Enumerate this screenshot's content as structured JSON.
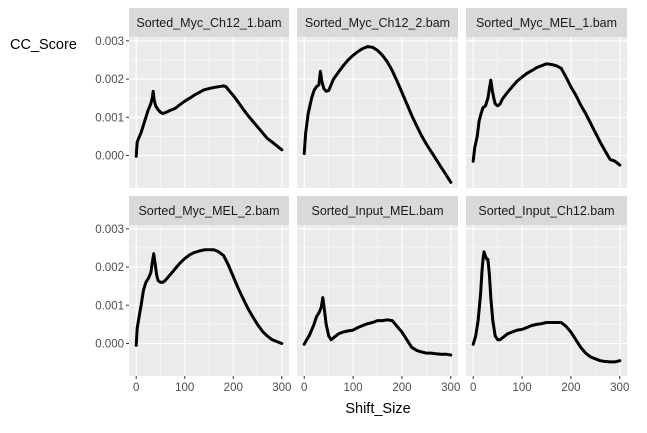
{
  "chart_data": {
    "type": "line",
    "xlabel": "Shift_Size",
    "ylabel": "CC_Score",
    "xlim": [
      0,
      300
    ],
    "ylim": [
      -0.00085,
      0.0031
    ],
    "x_ticks": [
      0,
      100,
      200,
      300
    ],
    "x_tick_labels": [
      "0",
      "100",
      "200",
      "300"
    ],
    "y_ticks": [
      0,
      0.001,
      0.002,
      0.003
    ],
    "y_tick_labels": [
      "0.000",
      "0.001",
      "0.002",
      "0.003"
    ],
    "grid": true,
    "facet_layout": {
      "rows": 2,
      "cols": 3
    },
    "panels": [
      {
        "title": "Sorted_Myc_Ch12_1.bam",
        "points": [
          [
            0,
            -2e-05
          ],
          [
            2,
            0.00035
          ],
          [
            5,
            0.00045
          ],
          [
            10,
            0.0006
          ],
          [
            15,
            0.0008
          ],
          [
            20,
            0.001
          ],
          [
            25,
            0.0012
          ],
          [
            30,
            0.00135
          ],
          [
            33,
            0.0015
          ],
          [
            35,
            0.00168
          ],
          [
            37,
            0.00145
          ],
          [
            40,
            0.0013
          ],
          [
            45,
            0.0012
          ],
          [
            50,
            0.00113
          ],
          [
            55,
            0.0011
          ],
          [
            60,
            0.00112
          ],
          [
            70,
            0.00118
          ],
          [
            80,
            0.00123
          ],
          [
            90,
            0.00133
          ],
          [
            100,
            0.00142
          ],
          [
            110,
            0.0015
          ],
          [
            120,
            0.00158
          ],
          [
            130,
            0.00165
          ],
          [
            140,
            0.00172
          ],
          [
            150,
            0.00175
          ],
          [
            160,
            0.00178
          ],
          [
            170,
            0.0018
          ],
          [
            180,
            0.00182
          ],
          [
            185,
            0.0018
          ],
          [
            190,
            0.00172
          ],
          [
            200,
            0.00157
          ],
          [
            210,
            0.0014
          ],
          [
            220,
            0.00122
          ],
          [
            230,
            0.00105
          ],
          [
            240,
            0.0009
          ],
          [
            250,
            0.00075
          ],
          [
            260,
            0.0006
          ],
          [
            270,
            0.00045
          ],
          [
            280,
            0.00035
          ],
          [
            290,
            0.00025
          ],
          [
            300,
            0.00015
          ]
        ]
      },
      {
        "title": "Sorted_Myc_Ch12_2.bam",
        "points": [
          [
            0,
            5e-05
          ],
          [
            3,
            0.0006
          ],
          [
            8,
            0.0011
          ],
          [
            15,
            0.0015
          ],
          [
            20,
            0.0017
          ],
          [
            25,
            0.0018
          ],
          [
            30,
            0.00185
          ],
          [
            33,
            0.0022
          ],
          [
            36,
            0.00195
          ],
          [
            40,
            0.00175
          ],
          [
            45,
            0.00168
          ],
          [
            50,
            0.0017
          ],
          [
            55,
            0.00185
          ],
          [
            60,
            0.002
          ],
          [
            70,
            0.00218
          ],
          [
            80,
            0.00235
          ],
          [
            90,
            0.0025
          ],
          [
            100,
            0.00262
          ],
          [
            110,
            0.00272
          ],
          [
            120,
            0.0028
          ],
          [
            130,
            0.00285
          ],
          [
            140,
            0.00283
          ],
          [
            150,
            0.00275
          ],
          [
            160,
            0.00262
          ],
          [
            170,
            0.00245
          ],
          [
            180,
            0.00222
          ],
          [
            190,
            0.00195
          ],
          [
            200,
            0.00165
          ],
          [
            210,
            0.00135
          ],
          [
            220,
            0.00105
          ],
          [
            230,
            0.00078
          ],
          [
            240,
            0.00052
          ],
          [
            250,
            0.0003
          ],
          [
            260,
            0.0001
          ],
          [
            270,
            -0.0001
          ],
          [
            280,
            -0.0003
          ],
          [
            290,
            -0.0005
          ],
          [
            300,
            -0.0007
          ]
        ]
      },
      {
        "title": "Sorted_Myc_MEL_1.bam",
        "points": [
          [
            0,
            -0.00015
          ],
          [
            3,
            0.0002
          ],
          [
            8,
            0.0005
          ],
          [
            12,
            0.0009
          ],
          [
            16,
            0.0011
          ],
          [
            20,
            0.00125
          ],
          [
            25,
            0.0013
          ],
          [
            30,
            0.0015
          ],
          [
            33,
            0.00175
          ],
          [
            36,
            0.00197
          ],
          [
            39,
            0.0017
          ],
          [
            42,
            0.0015
          ],
          [
            45,
            0.00135
          ],
          [
            50,
            0.0013
          ],
          [
            55,
            0.00135
          ],
          [
            60,
            0.00148
          ],
          [
            70,
            0.00165
          ],
          [
            80,
            0.0018
          ],
          [
            90,
            0.00195
          ],
          [
            100,
            0.00205
          ],
          [
            110,
            0.00215
          ],
          [
            120,
            0.00222
          ],
          [
            130,
            0.0023
          ],
          [
            140,
            0.00235
          ],
          [
            150,
            0.0024
          ],
          [
            160,
            0.00238
          ],
          [
            170,
            0.00235
          ],
          [
            180,
            0.00228
          ],
          [
            190,
            0.00205
          ],
          [
            200,
            0.0018
          ],
          [
            210,
            0.00158
          ],
          [
            220,
            0.00132
          ],
          [
            230,
            0.0011
          ],
          [
            240,
            0.00085
          ],
          [
            250,
            0.0006
          ],
          [
            260,
            0.00035
          ],
          [
            270,
            0.00012
          ],
          [
            280,
            -0.0001
          ],
          [
            290,
            -0.00015
          ],
          [
            300,
            -0.00025
          ]
        ]
      },
      {
        "title": "Sorted_Myc_MEL_2.bam",
        "points": [
          [
            0,
            -5e-05
          ],
          [
            2,
            0.0004
          ],
          [
            6,
            0.0007
          ],
          [
            10,
            0.001
          ],
          [
            15,
            0.0014
          ],
          [
            20,
            0.0016
          ],
          [
            25,
            0.0017
          ],
          [
            30,
            0.00185
          ],
          [
            33,
            0.0021
          ],
          [
            36,
            0.00235
          ],
          [
            39,
            0.0021
          ],
          [
            42,
            0.0018
          ],
          [
            45,
            0.00165
          ],
          [
            50,
            0.0016
          ],
          [
            55,
            0.0016
          ],
          [
            60,
            0.00165
          ],
          [
            70,
            0.0018
          ],
          [
            80,
            0.00195
          ],
          [
            90,
            0.0021
          ],
          [
            100,
            0.00222
          ],
          [
            110,
            0.00232
          ],
          [
            120,
            0.00238
          ],
          [
            130,
            0.00242
          ],
          [
            140,
            0.00245
          ],
          [
            150,
            0.00245
          ],
          [
            160,
            0.00245
          ],
          [
            170,
            0.0024
          ],
          [
            180,
            0.0023
          ],
          [
            190,
            0.00205
          ],
          [
            200,
            0.00175
          ],
          [
            210,
            0.00145
          ],
          [
            220,
            0.00118
          ],
          [
            230,
            0.00092
          ],
          [
            240,
            0.0007
          ],
          [
            250,
            0.0005
          ],
          [
            260,
            0.00032
          ],
          [
            270,
            0.0002
          ],
          [
            280,
            0.0001
          ],
          [
            290,
            5e-05
          ],
          [
            300,
            0.0
          ]
        ]
      },
      {
        "title": "Sorted_Input_MEL.bam",
        "points": [
          [
            0,
            -2e-05
          ],
          [
            5,
            0.0001
          ],
          [
            10,
            0.0002
          ],
          [
            15,
            0.00035
          ],
          [
            20,
            0.0005
          ],
          [
            25,
            0.0007
          ],
          [
            30,
            0.0008
          ],
          [
            35,
            0.00095
          ],
          [
            38,
            0.0012
          ],
          [
            41,
            0.0009
          ],
          [
            45,
            0.0005
          ],
          [
            50,
            0.0002
          ],
          [
            55,
            0.0001
          ],
          [
            60,
            0.00015
          ],
          [
            70,
            0.00025
          ],
          [
            80,
            0.0003
          ],
          [
            90,
            0.00033
          ],
          [
            100,
            0.00035
          ],
          [
            110,
            0.00042
          ],
          [
            120,
            0.00047
          ],
          [
            130,
            0.00052
          ],
          [
            140,
            0.00055
          ],
          [
            150,
            0.0006
          ],
          [
            160,
            0.0006
          ],
          [
            170,
            0.00062
          ],
          [
            180,
            0.0006
          ],
          [
            190,
            0.00045
          ],
          [
            200,
            0.0003
          ],
          [
            210,
            0.0001
          ],
          [
            220,
            -0.0001
          ],
          [
            230,
            -0.00018
          ],
          [
            240,
            -0.00022
          ],
          [
            250,
            -0.00025
          ],
          [
            260,
            -0.00025
          ],
          [
            270,
            -0.00027
          ],
          [
            280,
            -0.00028
          ],
          [
            290,
            -0.00028
          ],
          [
            300,
            -0.0003
          ]
        ]
      },
      {
        "title": "Sorted_Input_Ch12.bam",
        "points": [
          [
            0,
            -2e-05
          ],
          [
            5,
            0.0002
          ],
          [
            10,
            0.0006
          ],
          [
            15,
            0.0013
          ],
          [
            18,
            0.0019
          ],
          [
            20,
            0.0022
          ],
          [
            22,
            0.0024
          ],
          [
            25,
            0.00228
          ],
          [
            28,
            0.0022
          ],
          [
            30,
            0.0022
          ],
          [
            33,
            0.0018
          ],
          [
            36,
            0.0012
          ],
          [
            40,
            0.0006
          ],
          [
            45,
            0.0002
          ],
          [
            50,
            0.0001
          ],
          [
            55,
            0.0001
          ],
          [
            60,
            0.00015
          ],
          [
            70,
            0.00025
          ],
          [
            80,
            0.0003
          ],
          [
            90,
            0.00035
          ],
          [
            100,
            0.00037
          ],
          [
            110,
            0.00042
          ],
          [
            120,
            0.00047
          ],
          [
            130,
            0.0005
          ],
          [
            140,
            0.00052
          ],
          [
            150,
            0.00055
          ],
          [
            160,
            0.00055
          ],
          [
            170,
            0.00055
          ],
          [
            180,
            0.00055
          ],
          [
            190,
            0.00045
          ],
          [
            200,
            0.0003
          ],
          [
            210,
            0.0001
          ],
          [
            220,
            -0.0001
          ],
          [
            230,
            -0.00025
          ],
          [
            240,
            -0.00035
          ],
          [
            250,
            -0.0004
          ],
          [
            260,
            -0.00045
          ],
          [
            270,
            -0.00047
          ],
          [
            280,
            -0.00048
          ],
          [
            290,
            -0.00048
          ],
          [
            300,
            -0.00045
          ]
        ]
      }
    ]
  },
  "colors": {
    "panel_bg": "#EBEBEB",
    "strip_bg": "#D9D9D9",
    "grid_major": "#FFFFFF",
    "line": "#000000",
    "tick_text": "#4D4D4D",
    "strip_text": "#1A1A1A",
    "axis_title": "#000000"
  }
}
